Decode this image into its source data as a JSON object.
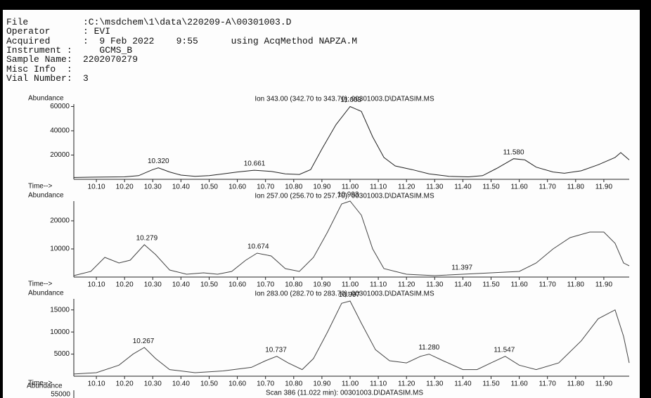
{
  "header": {
    "rows": [
      [
        "File",
        ":C:\\msdchem\\1\\data\\220209-A\\00301003.D"
      ],
      [
        "Operator",
        ": EVI"
      ],
      [
        "Acquired",
        ":  9 Feb 2022    9:55      using AcqMethod NAPZA.M"
      ],
      [
        "Instrument :",
        "   GCMS_B"
      ],
      [
        "Sample Name:",
        "2202070279"
      ],
      [
        "Misc Info  :"
      ],
      [
        "Vial Number:",
        "3"
      ]
    ]
  },
  "chart_data": [
    {
      "type": "line",
      "title": "Ion 343.00 (342.70 to 343.70): 00301003.D\\DATASIM.MS",
      "ylabel": "Abundance",
      "xlabel": "Time-->",
      "color": "#222",
      "xlim": [
        10.02,
        11.99
      ],
      "ylim": [
        0,
        62000
      ],
      "yticks": [
        20000,
        40000,
        60000
      ],
      "xticks": [
        {
          "value": 10.1,
          "label": "10.10"
        },
        {
          "value": 10.2,
          "label": "10.20"
        },
        {
          "value": 10.3,
          "label": "10.30"
        },
        {
          "value": 10.4,
          "label": "10.40"
        },
        {
          "value": 10.5,
          "label": "10.50"
        },
        {
          "value": 10.6,
          "label": "10.60"
        },
        {
          "value": 10.7,
          "label": "10.70"
        },
        {
          "value": 10.8,
          "label": "10.80"
        },
        {
          "value": 10.9,
          "label": "10.90"
        },
        {
          "value": 11,
          "label": "11.00"
        },
        {
          "value": 11.1,
          "label": "11.10"
        },
        {
          "value": 11.2,
          "label": "11.20"
        },
        {
          "value": 11.3,
          "label": "11.30"
        },
        {
          "value": 11.4,
          "label": "11.40"
        },
        {
          "value": 11.5,
          "label": "11.50"
        },
        {
          "value": 11.6,
          "label": "11.60"
        },
        {
          "value": 11.7,
          "label": "11.70"
        },
        {
          "value": 11.8,
          "label": "11.80"
        },
        {
          "value": 11.9,
          "label": "11.90"
        }
      ],
      "x": [
        10.02,
        10.1,
        10.2,
        10.25,
        10.3,
        10.32,
        10.36,
        10.4,
        10.45,
        10.5,
        10.55,
        10.6,
        10.66,
        10.72,
        10.77,
        10.82,
        10.86,
        10.9,
        10.95,
        11.0,
        11.04,
        11.08,
        11.12,
        11.16,
        11.22,
        11.28,
        11.35,
        11.42,
        11.47,
        11.52,
        11.58,
        11.62,
        11.66,
        11.72,
        11.76,
        11.82,
        11.88,
        11.94,
        11.96,
        11.99
      ],
      "values": [
        1500,
        1800,
        2000,
        3000,
        8000,
        9500,
        6000,
        3500,
        2500,
        3000,
        4500,
        6000,
        7500,
        6500,
        4500,
        4000,
        8000,
        25000,
        45000,
        60000,
        56000,
        35000,
        18000,
        11000,
        8000,
        4500,
        2500,
        2000,
        3000,
        9000,
        17000,
        16000,
        10000,
        6000,
        5000,
        7000,
        12000,
        18000,
        22000,
        16000
      ],
      "peaks": [
        {
          "value": 10.32,
          "label": "10.320",
          "height": 9500
        },
        {
          "value": 10.661,
          "label": "10.661",
          "height": 7500
        },
        {
          "value": 11.003,
          "label": "11.003",
          "height": 60000
        },
        {
          "value": 11.58,
          "label": "11.580",
          "height": 17000
        }
      ]
    },
    {
      "type": "line",
      "title": "Ion 257.00 (256.70 to 257.70): 00301003.D\\DATASIM.MS",
      "ylabel": "Abundance",
      "xlabel": "Time-->",
      "color": "#444",
      "xlim": [
        10.02,
        11.99
      ],
      "ylim": [
        0,
        27000
      ],
      "yticks": [
        10000,
        20000
      ],
      "xticks": [
        {
          "value": 10.1,
          "label": "10.10"
        },
        {
          "value": 10.2,
          "label": "10.20"
        },
        {
          "value": 10.3,
          "label": "10.30"
        },
        {
          "value": 10.4,
          "label": "10.40"
        },
        {
          "value": 10.5,
          "label": "10.50"
        },
        {
          "value": 10.6,
          "label": "10.60"
        },
        {
          "value": 10.7,
          "label": "10.70"
        },
        {
          "value": 10.8,
          "label": "10.80"
        },
        {
          "value": 10.9,
          "label": "10.90"
        },
        {
          "value": 11,
          "label": "11.00"
        },
        {
          "value": 11.1,
          "label": "11.10"
        },
        {
          "value": 11.2,
          "label": "11.20"
        },
        {
          "value": 11.3,
          "label": "11.30"
        },
        {
          "value": 11.4,
          "label": "11.40"
        },
        {
          "value": 11.5,
          "label": "11.50"
        },
        {
          "value": 11.6,
          "label": "11.60"
        },
        {
          "value": 11.7,
          "label": "11.70"
        },
        {
          "value": 11.8,
          "label": "11.80"
        },
        {
          "value": 11.9,
          "label": "11.90"
        }
      ],
      "x": [
        10.02,
        10.08,
        10.13,
        10.18,
        10.22,
        10.27,
        10.31,
        10.36,
        10.42,
        10.48,
        10.53,
        10.58,
        10.63,
        10.67,
        10.72,
        10.77,
        10.82,
        10.87,
        10.92,
        10.97,
        11.0,
        11.04,
        11.08,
        11.12,
        11.2,
        11.3,
        11.4,
        11.5,
        11.6,
        11.66,
        11.72,
        11.78,
        11.85,
        11.9,
        11.94,
        11.97,
        11.99
      ],
      "values": [
        500,
        2000,
        7000,
        5000,
        6000,
        11500,
        8000,
        2500,
        1000,
        1500,
        1000,
        2000,
        6000,
        8500,
        7500,
        3000,
        2000,
        7000,
        16000,
        26000,
        27000,
        22000,
        10000,
        3000,
        1000,
        500,
        1000,
        1500,
        2000,
        5000,
        10000,
        14000,
        16000,
        16000,
        12000,
        5000,
        4000
      ],
      "peaks": [
        {
          "value": 10.279,
          "label": "10.279",
          "height": 11500
        },
        {
          "value": 10.674,
          "label": "10.674",
          "height": 8500
        },
        {
          "value": 10.993,
          "label": "10.993",
          "height": 27000
        },
        {
          "value": 11.397,
          "label": "11.397",
          "height": 1000
        }
      ]
    },
    {
      "type": "line",
      "title": "Ion 283.00 (282.70 to 283.70): 00301003.D\\DATASIM.MS",
      "ylabel": "Abundance",
      "xlabel": "Time-->",
      "color": "#444",
      "xlim": [
        10.02,
        11.99
      ],
      "ylim": [
        0,
        17500
      ],
      "yticks": [
        5000,
        10000,
        15000
      ],
      "xticks": [
        {
          "value": 10.1,
          "label": "10.10"
        },
        {
          "value": 10.2,
          "label": "10.20"
        },
        {
          "value": 10.3,
          "label": "10.30"
        },
        {
          "value": 10.4,
          "label": "10.40"
        },
        {
          "value": 10.5,
          "label": "10.50"
        },
        {
          "value": 10.6,
          "label": "10.60"
        },
        {
          "value": 10.7,
          "label": "10.70"
        },
        {
          "value": 10.8,
          "label": "10.80"
        },
        {
          "value": 10.9,
          "label": "10.90"
        },
        {
          "value": 11,
          "label": "11.00"
        },
        {
          "value": 11.1,
          "label": "11.10"
        },
        {
          "value": 11.2,
          "label": "11.20"
        },
        {
          "value": 11.3,
          "label": "11.30"
        },
        {
          "value": 11.4,
          "label": "11.40"
        },
        {
          "value": 11.5,
          "label": "11.50"
        },
        {
          "value": 11.6,
          "label": "11.60"
        },
        {
          "value": 11.7,
          "label": "11.70"
        },
        {
          "value": 11.8,
          "label": "11.80"
        },
        {
          "value": 11.9,
          "label": "11.90"
        }
      ],
      "x": [
        10.02,
        10.1,
        10.18,
        10.23,
        10.27,
        10.31,
        10.36,
        10.45,
        10.55,
        10.65,
        10.7,
        10.74,
        10.78,
        10.83,
        10.87,
        10.92,
        10.97,
        11.0,
        11.04,
        11.09,
        11.14,
        11.2,
        11.25,
        11.28,
        11.33,
        11.4,
        11.45,
        11.5,
        11.55,
        11.6,
        11.66,
        11.74,
        11.82,
        11.88,
        11.94,
        11.97,
        11.99
      ],
      "values": [
        500,
        800,
        2500,
        5000,
        6500,
        4000,
        1500,
        800,
        1200,
        2000,
        3500,
        4500,
        3000,
        1500,
        4000,
        10000,
        16500,
        17000,
        12000,
        6000,
        3500,
        3000,
        4500,
        5000,
        3500,
        1500,
        1500,
        3000,
        4500,
        2500,
        1500,
        3000,
        8000,
        13000,
        15000,
        9000,
        3000
      ],
      "peaks": [
        {
          "value": 10.267,
          "label": "10.267",
          "height": 6500
        },
        {
          "value": 10.737,
          "label": "10.737",
          "height": 4500
        },
        {
          "value": 10.997,
          "label": "10.997",
          "height": 17000
        },
        {
          "value": 11.28,
          "label": "11.280",
          "height": 5000
        },
        {
          "value": 11.547,
          "label": "11.547",
          "height": 4500
        }
      ]
    }
  ],
  "scan": {
    "ylabel": "Abundance",
    "ytick": 55000,
    "title": "Scan 386 (11.022 min): 00301003.D\\DATASIM.MS"
  }
}
